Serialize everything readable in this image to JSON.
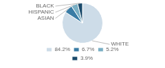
{
  "chart_data": {
    "type": "pie",
    "categories": [
      "WHITE",
      "ASIAN",
      "HISPANIC",
      "BLACK"
    ],
    "values": [
      84.2,
      6.7,
      5.2,
      3.9
    ],
    "value_labels": [
      "84.2%",
      "6.7%",
      "5.2%",
      "3.9%"
    ],
    "colors": [
      "#cddce8",
      "#3a7ca5",
      "#7aafc4",
      "#1a4a6b"
    ],
    "legend": "bottom"
  }
}
